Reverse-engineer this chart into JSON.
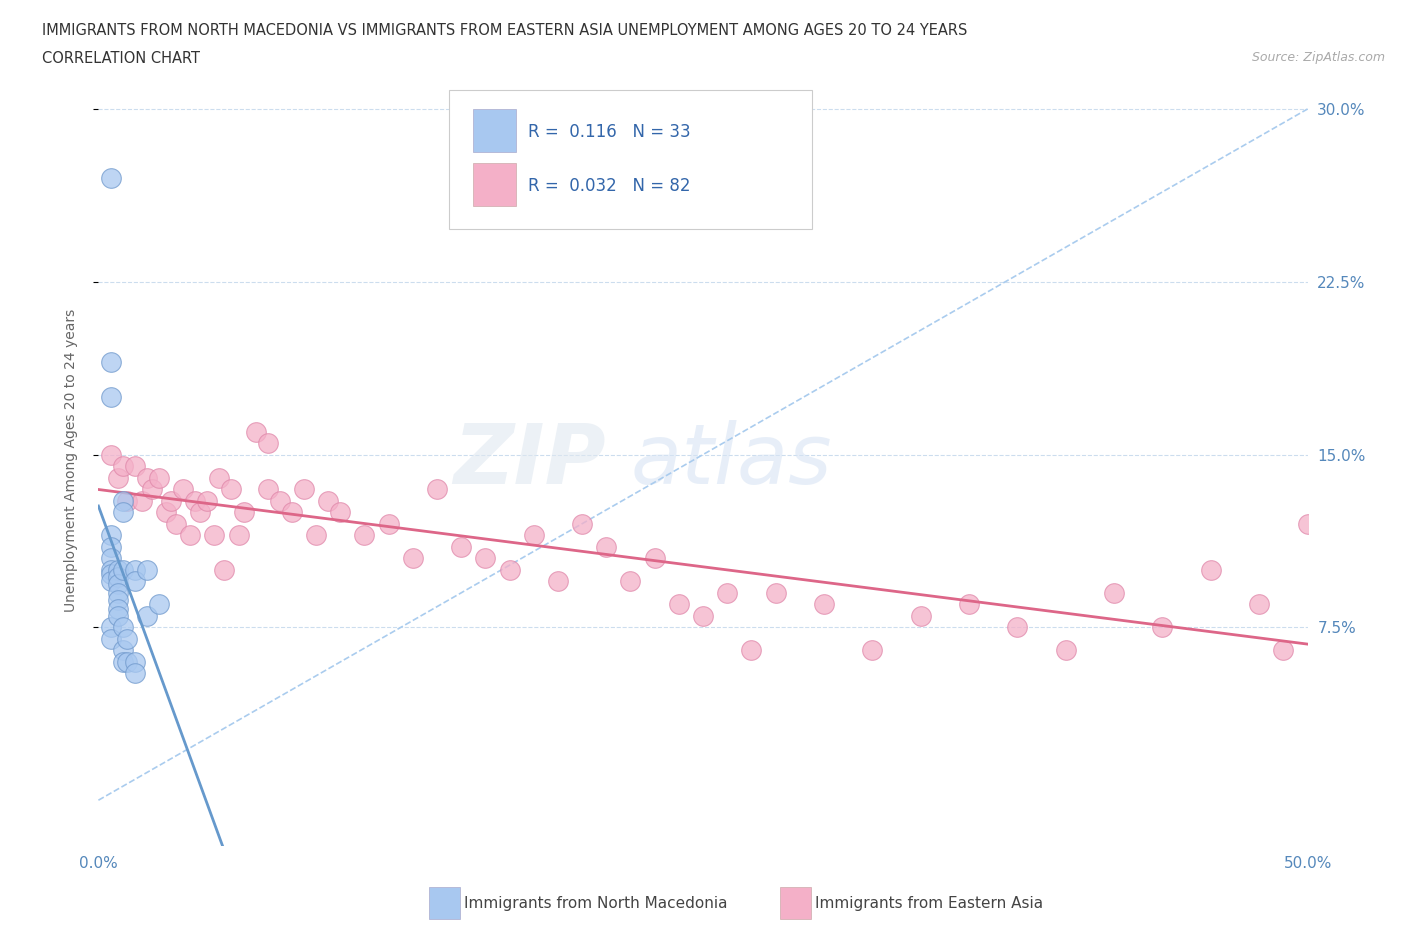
{
  "title_line1": "IMMIGRANTS FROM NORTH MACEDONIA VS IMMIGRANTS FROM EASTERN ASIA UNEMPLOYMENT AMONG AGES 20 TO 24 YEARS",
  "title_line2": "CORRELATION CHART",
  "source_text": "Source: ZipAtlas.com",
  "ylabel": "Unemployment Among Ages 20 to 24 years",
  "xlim": [
    0.0,
    0.5
  ],
  "ylim": [
    -0.02,
    0.315
  ],
  "ytick_positions": [
    0.075,
    0.15,
    0.225,
    0.3
  ],
  "ytick_labels": [
    "7.5%",
    "15.0%",
    "22.5%",
    "30.0%"
  ],
  "color_blue": "#a8c8f0",
  "color_pink": "#f4b0c8",
  "color_blue_edge": "#7099cc",
  "color_pink_edge": "#e088aa",
  "color_trendline_blue": "#6699cc",
  "color_trendline_pink": "#dd6688",
  "color_trendline_dashed": "#aaccee",
  "watermark_zip": "ZIP",
  "watermark_atlas": "atlas",
  "north_macedonia_x": [
    0.005,
    0.005,
    0.005,
    0.005,
    0.005,
    0.005,
    0.005,
    0.005,
    0.005,
    0.005,
    0.005,
    0.008,
    0.008,
    0.008,
    0.008,
    0.008,
    0.008,
    0.008,
    0.01,
    0.01,
    0.01,
    0.01,
    0.01,
    0.01,
    0.012,
    0.012,
    0.015,
    0.015,
    0.015,
    0.015,
    0.02,
    0.02,
    0.025
  ],
  "north_macedonia_y": [
    0.27,
    0.19,
    0.175,
    0.115,
    0.11,
    0.105,
    0.1,
    0.098,
    0.095,
    0.075,
    0.07,
    0.1,
    0.097,
    0.094,
    0.09,
    0.087,
    0.083,
    0.08,
    0.13,
    0.125,
    0.1,
    0.075,
    0.065,
    0.06,
    0.07,
    0.06,
    0.1,
    0.095,
    0.06,
    0.055,
    0.1,
    0.08,
    0.085
  ],
  "eastern_asia_x": [
    0.005,
    0.008,
    0.01,
    0.012,
    0.015,
    0.018,
    0.02,
    0.022,
    0.025,
    0.028,
    0.03,
    0.032,
    0.035,
    0.038,
    0.04,
    0.042,
    0.045,
    0.048,
    0.05,
    0.052,
    0.055,
    0.058,
    0.06,
    0.065,
    0.07,
    0.07,
    0.075,
    0.08,
    0.085,
    0.09,
    0.095,
    0.1,
    0.11,
    0.12,
    0.13,
    0.14,
    0.15,
    0.16,
    0.17,
    0.18,
    0.19,
    0.2,
    0.21,
    0.22,
    0.23,
    0.24,
    0.25,
    0.26,
    0.27,
    0.28,
    0.3,
    0.32,
    0.34,
    0.36,
    0.38,
    0.4,
    0.42,
    0.44,
    0.46,
    0.48,
    0.49,
    0.5
  ],
  "eastern_asia_y": [
    0.15,
    0.14,
    0.145,
    0.13,
    0.145,
    0.13,
    0.14,
    0.135,
    0.14,
    0.125,
    0.13,
    0.12,
    0.135,
    0.115,
    0.13,
    0.125,
    0.13,
    0.115,
    0.14,
    0.1,
    0.135,
    0.115,
    0.125,
    0.16,
    0.135,
    0.155,
    0.13,
    0.125,
    0.135,
    0.115,
    0.13,
    0.125,
    0.115,
    0.12,
    0.105,
    0.135,
    0.11,
    0.105,
    0.1,
    0.115,
    0.095,
    0.12,
    0.11,
    0.095,
    0.105,
    0.085,
    0.08,
    0.09,
    0.065,
    0.09,
    0.085,
    0.065,
    0.08,
    0.085,
    0.075,
    0.065,
    0.09,
    0.075,
    0.1,
    0.085,
    0.065,
    0.12
  ],
  "ref_line_slope": 0.6,
  "ref_line_intercept": 0.0
}
